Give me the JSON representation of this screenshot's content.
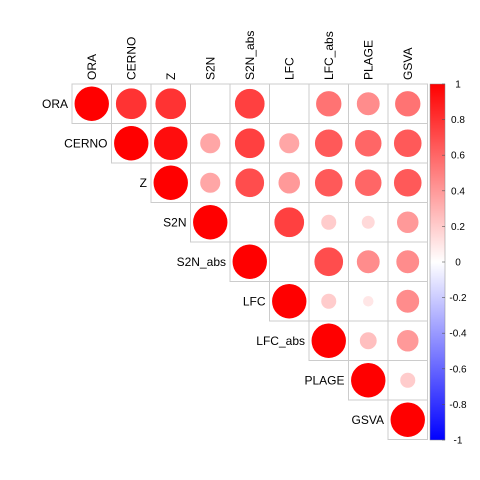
{
  "chart_data": {
    "type": "heatmap",
    "variant": "correlation-circles-upper-triangle",
    "variables": [
      "ORA",
      "CERNO",
      "Z",
      "S2N",
      "S2N_abs",
      "LFC",
      "LFC_abs",
      "PLAGE",
      "GSVA"
    ],
    "cells": [
      {
        "row": "ORA",
        "col": "ORA",
        "value": 1.0
      },
      {
        "row": "ORA",
        "col": "CERNO",
        "value": 0.8
      },
      {
        "row": "ORA",
        "col": "Z",
        "value": 0.8
      },
      {
        "row": "ORA",
        "col": "S2N_abs",
        "value": 0.75
      },
      {
        "row": "ORA",
        "col": "LFC_abs",
        "value": 0.55
      },
      {
        "row": "ORA",
        "col": "PLAGE",
        "value": 0.45
      },
      {
        "row": "ORA",
        "col": "GSVA",
        "value": 0.55
      },
      {
        "row": "CERNO",
        "col": "CERNO",
        "value": 1.0
      },
      {
        "row": "CERNO",
        "col": "Z",
        "value": 0.95
      },
      {
        "row": "CERNO",
        "col": "S2N",
        "value": 0.35
      },
      {
        "row": "CERNO",
        "col": "S2N_abs",
        "value": 0.75
      },
      {
        "row": "CERNO",
        "col": "LFC",
        "value": 0.35
      },
      {
        "row": "CERNO",
        "col": "LFC_abs",
        "value": 0.65
      },
      {
        "row": "CERNO",
        "col": "PLAGE",
        "value": 0.6
      },
      {
        "row": "CERNO",
        "col": "GSVA",
        "value": 0.65
      },
      {
        "row": "Z",
        "col": "Z",
        "value": 1.0
      },
      {
        "row": "Z",
        "col": "S2N",
        "value": 0.35
      },
      {
        "row": "Z",
        "col": "S2N_abs",
        "value": 0.7
      },
      {
        "row": "Z",
        "col": "LFC",
        "value": 0.4
      },
      {
        "row": "Z",
        "col": "LFC_abs",
        "value": 0.65
      },
      {
        "row": "Z",
        "col": "PLAGE",
        "value": 0.6
      },
      {
        "row": "Z",
        "col": "GSVA",
        "value": 0.65
      },
      {
        "row": "S2N",
        "col": "S2N",
        "value": 1.0
      },
      {
        "row": "S2N",
        "col": "LFC",
        "value": 0.75
      },
      {
        "row": "S2N",
        "col": "LFC_abs",
        "value": 0.2
      },
      {
        "row": "S2N",
        "col": "PLAGE",
        "value": 0.15
      },
      {
        "row": "S2N",
        "col": "GSVA",
        "value": 0.4
      },
      {
        "row": "S2N_abs",
        "col": "S2N_abs",
        "value": 1.0
      },
      {
        "row": "S2N_abs",
        "col": "LFC_abs",
        "value": 0.7
      },
      {
        "row": "S2N_abs",
        "col": "PLAGE",
        "value": 0.45
      },
      {
        "row": "S2N_abs",
        "col": "GSVA",
        "value": 0.45
      },
      {
        "row": "LFC",
        "col": "LFC",
        "value": 1.0
      },
      {
        "row": "LFC",
        "col": "LFC_abs",
        "value": 0.2
      },
      {
        "row": "LFC",
        "col": "PLAGE",
        "value": 0.1
      },
      {
        "row": "LFC",
        "col": "GSVA",
        "value": 0.45
      },
      {
        "row": "LFC_abs",
        "col": "LFC_abs",
        "value": 1.0
      },
      {
        "row": "LFC_abs",
        "col": "PLAGE",
        "value": 0.25
      },
      {
        "row": "LFC_abs",
        "col": "GSVA",
        "value": 0.4
      },
      {
        "row": "PLAGE",
        "col": "PLAGE",
        "value": 1.0
      },
      {
        "row": "PLAGE",
        "col": "GSVA",
        "value": 0.2
      },
      {
        "row": "GSVA",
        "col": "GSVA",
        "value": 1.0
      }
    ],
    "colorbar": {
      "range": [
        -1,
        1
      ],
      "ticks": [
        "1",
        "0.8",
        "0.6",
        "0.4",
        "0.2",
        "0",
        "-0.2",
        "-0.4",
        "-0.6",
        "-0.8",
        "-1"
      ],
      "colors": {
        "low": "#0000FF",
        "mid": "#FFFFFF",
        "high": "#FF0000"
      }
    },
    "grid": true,
    "legend_position": "right",
    "title": "",
    "xlabel": "",
    "ylabel": ""
  }
}
